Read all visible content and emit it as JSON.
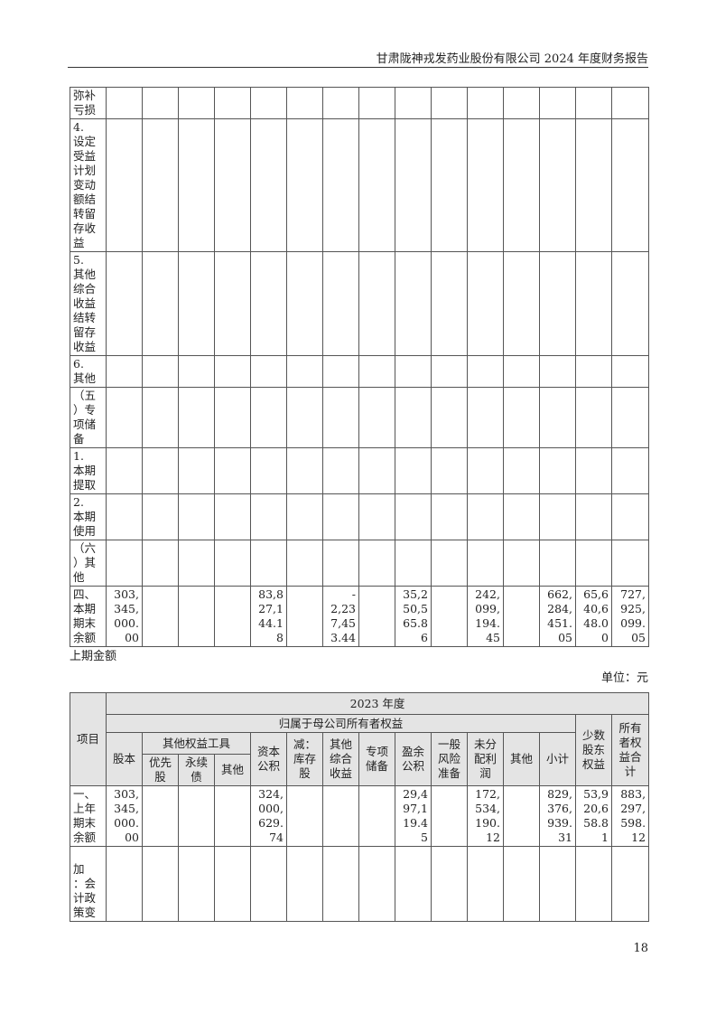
{
  "header": {
    "title": "甘肃陇神戎发药业股份有限公司 2024 年度财务报告"
  },
  "table1": {
    "rows": [
      {
        "label": "弥补\n亏损",
        "cells": [
          "",
          "",
          "",
          "",
          "",
          "",
          "",
          "",
          "",
          "",
          "",
          "",
          "",
          "",
          ""
        ]
      },
      {
        "label": "4.\n设定\n受益\n计划\n变动\n额结\n转留\n存收\n益",
        "cells": [
          "",
          "",
          "",
          "",
          "",
          "",
          "",
          "",
          "",
          "",
          "",
          "",
          "",
          "",
          ""
        ]
      },
      {
        "label": "5.\n其他\n综合\n收益\n结转\n留存\n收益",
        "cells": [
          "",
          "",
          "",
          "",
          "",
          "",
          "",
          "",
          "",
          "",
          "",
          "",
          "",
          "",
          ""
        ]
      },
      {
        "label": "6.\n其他",
        "cells": [
          "",
          "",
          "",
          "",
          "",
          "",
          "",
          "",
          "",
          "",
          "",
          "",
          "",
          "",
          ""
        ]
      },
      {
        "label": "（五\n）专\n项储\n备",
        "cells": [
          "",
          "",
          "",
          "",
          "",
          "",
          "",
          "",
          "",
          "",
          "",
          "",
          "",
          "",
          ""
        ]
      },
      {
        "label": "1.\n本期\n提取",
        "cells": [
          "",
          "",
          "",
          "",
          "",
          "",
          "",
          "",
          "",
          "",
          "",
          "",
          "",
          "",
          ""
        ]
      },
      {
        "label": "2.\n本期\n使用",
        "cells": [
          "",
          "",
          "",
          "",
          "",
          "",
          "",
          "",
          "",
          "",
          "",
          "",
          "",
          "",
          ""
        ]
      },
      {
        "label": "（六\n）其\n他",
        "cells": [
          "",
          "",
          "",
          "",
          "",
          "",
          "",
          "",
          "",
          "",
          "",
          "",
          "",
          "",
          ""
        ]
      },
      {
        "label": "四、\n本期\n期末\n余额",
        "cells": [
          "303,\n345,\n000.\n00",
          "",
          "",
          "",
          "83,8\n27,1\n44.1\n8",
          "",
          "-\n2,23\n7,45\n3.44",
          "",
          "35,2\n50,5\n65.8\n6",
          "",
          "242,\n099,\n194.\n45",
          "",
          "662,\n284,\n451.\n05",
          "65,6\n40,6\n48.0\n0",
          "727,\n925,\n099.\n05"
        ]
      }
    ]
  },
  "section_label": "上期金额",
  "unit": "单位：元",
  "table2": {
    "year": "2023 年度",
    "item": "项目",
    "parent_equity": "归属于母公司所有者权益",
    "other_equity_tools": "其他权益工具",
    "columns": {
      "share_capital": "股本",
      "preferred": "优先\n股",
      "perpetual": "永续\n债",
      "other_tool": "其他",
      "capital_reserve": "资本\n公积",
      "treasury": "减：\n库存\n股",
      "oci": "其他\n综合\n收益",
      "special_reserve": "专项\n储备",
      "surplus_reserve": "盈余\n公积",
      "general_risk": "一般\n风险\n准备",
      "undistributed": "未分\n配利\n润",
      "other": "其他",
      "subtotal": "小计",
      "minority": "少数\n股东\n权益",
      "total": "所有\n者权\n益合\n计"
    },
    "rows": [
      {
        "label": "一、\n上年\n期末\n余额",
        "cells": [
          "303,\n345,\n000.\n00",
          "",
          "",
          "",
          "324,\n000,\n629.\n74",
          "",
          "",
          "",
          "29,4\n97,1\n19.4\n5",
          "",
          "172,\n534,\n190.\n12",
          "",
          "829,\n376,\n939.\n31",
          "53,9\n20,6\n58.8\n1",
          "883,\n297,\n598.\n12"
        ]
      },
      {
        "label": "　　加\n：会\n计政\n策变",
        "cells": [
          "",
          "",
          "",
          "",
          "",
          "",
          "",
          "",
          "",
          "",
          "",
          "",
          "",
          "",
          ""
        ]
      }
    ]
  },
  "page_number": "18"
}
